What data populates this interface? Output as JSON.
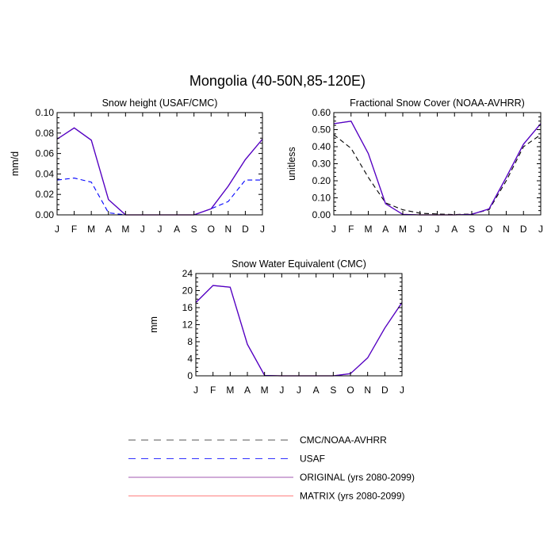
{
  "main_title": "Mongolia (40-50N,85-120E)",
  "legend": [
    {
      "label": "CMC/NOAA-AVHRR",
      "color": "#000000",
      "dash": "dashed"
    },
    {
      "label": "USAF",
      "color": "#0000ff",
      "dash": "dashed"
    },
    {
      "label": "ORIGINAL (yrs 2080-2099)",
      "color": "#800080",
      "dash": "solid"
    },
    {
      "label": "MATRIX (yrs 2080-2099)",
      "color": "#ff8080",
      "dash": "solid"
    }
  ],
  "chart_data": [
    {
      "type": "line",
      "title": "Snow height (USAF/CMC)",
      "ylabel": "mm/d",
      "xlabel": "",
      "categories": [
        "J",
        "F",
        "M",
        "A",
        "M",
        "J",
        "J",
        "A",
        "S",
        "O",
        "N",
        "D",
        "J"
      ],
      "ylim": [
        0,
        0.1
      ],
      "yticks": [
        "0.00",
        "0.02",
        "0.04",
        "0.06",
        "0.08",
        "0.10"
      ],
      "yticks_values": [
        0,
        0.02,
        0.04,
        0.06,
        0.08,
        0.1
      ],
      "series": [
        {
          "name": "CMC/NOAA-AVHRR",
          "color": "#000000",
          "dash": "dashed",
          "values": [
            0,
            0,
            0,
            0,
            0,
            0,
            0,
            0,
            0,
            0,
            0,
            0,
            0
          ]
        },
        {
          "name": "USAF",
          "color": "#0000ff",
          "dash": "dashed",
          "values": [
            0.034,
            0.036,
            0.032,
            0.002,
            0,
            0,
            0,
            0,
            0,
            0.006,
            0.013,
            0.034,
            0.034
          ]
        },
        {
          "name": "MATRIX (yrs 2080-2099)",
          "color": "#ff8080",
          "dash": "solid",
          "values": [
            0.074,
            0.085,
            0.073,
            0.015,
            0,
            0,
            0,
            0,
            0,
            0.006,
            0.028,
            0.054,
            0.074
          ]
        },
        {
          "name": "ORIGINAL (yrs 2080-2099)",
          "color": "#4b00cc",
          "dash": "solid",
          "values": [
            0.074,
            0.085,
            0.073,
            0.015,
            0,
            0,
            0,
            0,
            0,
            0.006,
            0.028,
            0.054,
            0.074
          ]
        }
      ]
    },
    {
      "type": "line",
      "title": "Fractional Snow Cover (NOAA-AVHRR)",
      "ylabel": "unitless",
      "xlabel": "",
      "categories": [
        "J",
        "F",
        "M",
        "A",
        "M",
        "J",
        "J",
        "A",
        "S",
        "O",
        "N",
        "D",
        "J"
      ],
      "ylim": [
        0,
        0.6
      ],
      "yticks": [
        "0.00",
        "0.10",
        "0.20",
        "0.30",
        "0.40",
        "0.50",
        "0.60"
      ],
      "yticks_values": [
        0,
        0.1,
        0.2,
        0.3,
        0.4,
        0.5,
        0.6
      ],
      "series": [
        {
          "name": "CMC/NOAA-AVHRR",
          "color": "#000000",
          "dash": "dashed",
          "values": [
            0.47,
            0.39,
            0.22,
            0.07,
            0.03,
            0.01,
            0.005,
            0.002,
            0.005,
            0.03,
            0.2,
            0.4,
            0.47
          ]
        },
        {
          "name": "MATRIX (yrs 2080-2099)",
          "color": "#ff8080",
          "dash": "solid",
          "values": [
            0.535,
            0.55,
            0.36,
            0.065,
            0.003,
            0,
            0,
            0,
            0.003,
            0.035,
            0.22,
            0.415,
            0.535
          ]
        },
        {
          "name": "ORIGINAL (yrs 2080-2099)",
          "color": "#4b00cc",
          "dash": "solid",
          "values": [
            0.535,
            0.55,
            0.36,
            0.065,
            0.003,
            0,
            0,
            0,
            0.003,
            0.035,
            0.22,
            0.415,
            0.535
          ]
        }
      ]
    },
    {
      "type": "line",
      "title": "Snow Water Equivalent (CMC)",
      "ylabel": "mm",
      "xlabel": "",
      "categories": [
        "J",
        "F",
        "M",
        "A",
        "M",
        "J",
        "J",
        "A",
        "S",
        "O",
        "N",
        "D",
        "J"
      ],
      "ylim": [
        0,
        24
      ],
      "yticks": [
        "0",
        "4",
        "8",
        "12",
        "16",
        "20",
        "24"
      ],
      "yticks_values": [
        0,
        4,
        8,
        12,
        16,
        20,
        24
      ],
      "series": [
        {
          "name": "CMC/NOAA-AVHRR",
          "color": "#000000",
          "dash": "dashed",
          "values": [
            0,
            0,
            0,
            0,
            0,
            0,
            0,
            0,
            0,
            0,
            0,
            0,
            0
          ]
        },
        {
          "name": "MATRIX (yrs 2080-2099)",
          "color": "#ff8080",
          "dash": "solid",
          "values": [
            17.2,
            21.2,
            20.8,
            7.4,
            0.1,
            0,
            0,
            0,
            0,
            0.5,
            4.2,
            11.2,
            17.2
          ]
        },
        {
          "name": "ORIGINAL (yrs 2080-2099)",
          "color": "#4b00cc",
          "dash": "solid",
          "values": [
            17.2,
            21.2,
            20.8,
            7.4,
            0.1,
            0,
            0,
            0,
            0,
            0.5,
            4.2,
            11.2,
            17.2
          ]
        }
      ]
    }
  ]
}
